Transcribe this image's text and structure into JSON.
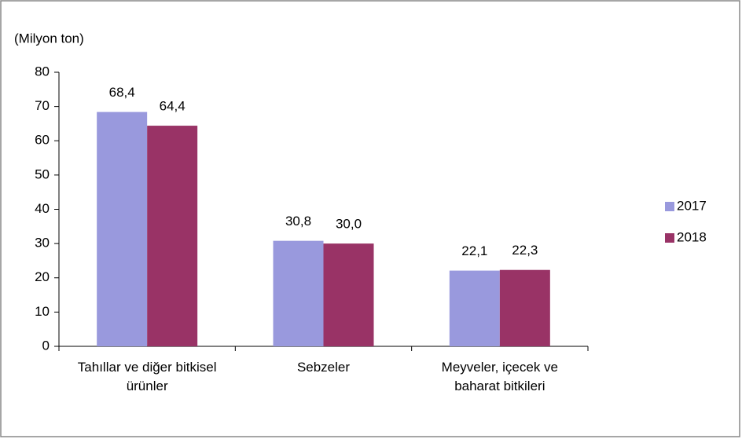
{
  "chart_data": {
    "type": "bar",
    "y_label": "(Milyon ton)",
    "categories": [
      "Tahıllar ve diğer bitkisel ürünler",
      "Sebzeler",
      "Meyveler, içecek ve baharat bitkileri"
    ],
    "series": [
      {
        "name": "2017",
        "color": "#9999dd",
        "values": [
          68.4,
          30.8,
          22.1
        ],
        "value_labels": [
          "68,4",
          "30,8",
          "22,1"
        ]
      },
      {
        "name": "2018",
        "color": "#993366",
        "values": [
          64.4,
          30.0,
          22.3
        ],
        "value_labels": [
          "64,4",
          "30,0",
          "22,3"
        ]
      }
    ],
    "ylim": [
      0,
      80
    ],
    "yticks": [
      0,
      10,
      20,
      30,
      40,
      50,
      60,
      70,
      80
    ],
    "legend": "right"
  }
}
